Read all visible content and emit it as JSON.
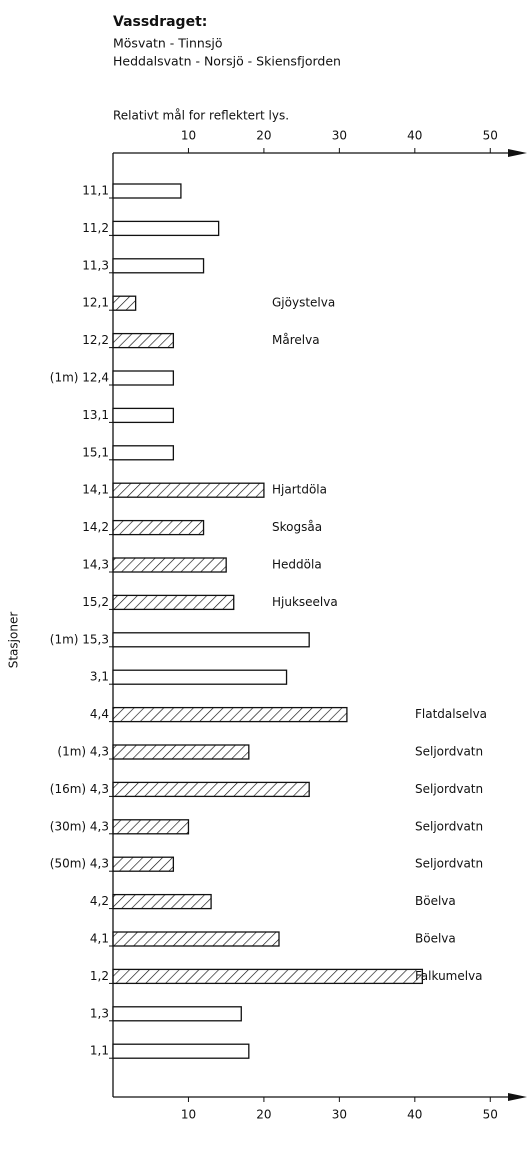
{
  "chart_data": {
    "type": "hbar",
    "title": "Vassdraget:",
    "subtitle": [
      "Mösvatn - Tinnsjö",
      "Heddalsvatn - Norsjö - Skiensfjorden"
    ],
    "x_label": "Relativt mål for reflektert lys.",
    "y_label": "Stasjoner",
    "categories": [
      "11,1",
      "11,2",
      "11,3",
      "12,1",
      "12,2",
      "(1m) 12,4",
      "13,1",
      "15,1",
      "14,1",
      "14,2",
      "14,3",
      "15,2",
      "(1m) 15,3",
      "3,1",
      "4,4",
      "(1m) 4,3",
      "(16m) 4,3",
      "(30m) 4,3",
      "(50m) 4,3",
      "4,2",
      "4,1",
      "1,2",
      "1,3",
      "1,1"
    ],
    "values": [
      9,
      14,
      12,
      3,
      8,
      8,
      8,
      8,
      20,
      12,
      15,
      16,
      26,
      23,
      31,
      18,
      26,
      10,
      8,
      13,
      22,
      41,
      17,
      18
    ],
    "hatched": [
      false,
      false,
      false,
      true,
      true,
      false,
      false,
      false,
      true,
      true,
      true,
      true,
      false,
      false,
      true,
      true,
      true,
      true,
      true,
      true,
      true,
      true,
      false,
      false
    ],
    "annotations": [
      null,
      null,
      null,
      "Gjöystelva",
      "Mårelva",
      null,
      null,
      null,
      "Hjartdöla",
      "Skogsåa",
      "Heddöla",
      "Hjukseelva",
      null,
      null,
      "Flatdalselva",
      "Seljordvatn",
      "Seljordvatn",
      "Seljordvatn",
      "Seljordvatn",
      "Böelva",
      "Böelva",
      "Falkumelva",
      null,
      null
    ],
    "color": "#111111",
    "xlim": [
      0,
      55
    ],
    "xticks": [
      10,
      20,
      30,
      40,
      50
    ]
  }
}
